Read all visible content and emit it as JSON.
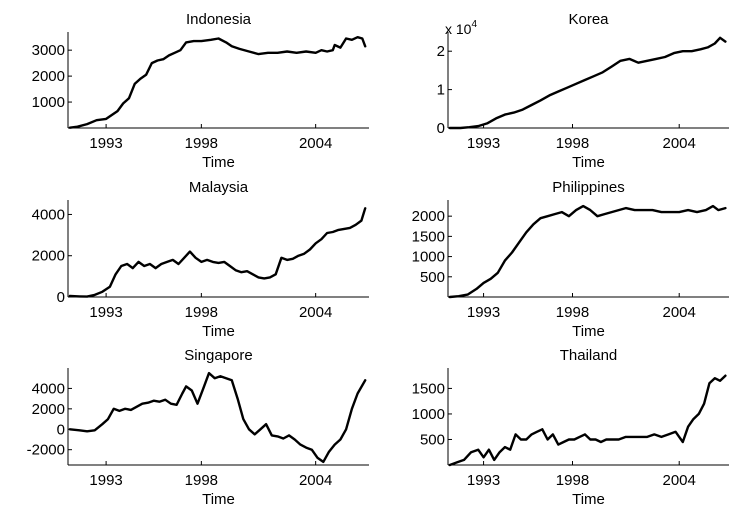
{
  "chart_data": [
    {
      "type": "line",
      "title": "Indonesia",
      "xlabel": "Time",
      "ylabel": "",
      "xlim": [
        1991.0,
        2006.8
      ],
      "ylim": [
        0,
        3700
      ],
      "xticks": [
        1993,
        1998,
        2004
      ],
      "xtick_labels": [
        "1993",
        "1998",
        "2004"
      ],
      "yticks": [
        1000,
        2000,
        3000
      ],
      "ytick_labels": [
        "1000",
        "2000",
        "3000"
      ],
      "x": [
        1991.1,
        1991.5,
        1992.0,
        1992.5,
        1993.0,
        1993.3,
        1993.6,
        1993.9,
        1994.2,
        1994.5,
        1994.8,
        1995.1,
        1995.4,
        1995.7,
        1996.0,
        1996.3,
        1996.6,
        1996.9,
        1997.2,
        1997.6,
        1998.0,
        1998.5,
        1998.9,
        1999.3,
        1999.6,
        2000.0,
        2000.5,
        2001.0,
        2001.5,
        2002.0,
        2002.5,
        2003.0,
        2003.5,
        2004.0,
        2004.3,
        2004.6,
        2004.9,
        2005.0,
        2005.3,
        2005.6,
        2005.9,
        2006.2,
        2006.45,
        2006.6
      ],
      "series": [
        {
          "values": [
            10,
            50,
            150,
            300,
            350,
            500,
            650,
            950,
            1150,
            1700,
            1900,
            2050,
            2500,
            2600,
            2650,
            2800,
            2900,
            3000,
            3300,
            3350,
            3350,
            3400,
            3450,
            3300,
            3150,
            3050,
            2950,
            2850,
            2900,
            2900,
            2950,
            2900,
            2950,
            2900,
            3000,
            2950,
            3000,
            3200,
            3100,
            3450,
            3400,
            3500,
            3450,
            3150
          ]
        }
      ]
    },
    {
      "type": "line",
      "title": "Korea",
      "xlabel": "Time",
      "ylabel": "",
      "axis_multiplier": "x 10",
      "axis_multiplier_exponent": "4",
      "xlim": [
        1991.0,
        2006.8
      ],
      "ylim": [
        0,
        2.5
      ],
      "xticks": [
        1993,
        1998,
        2004
      ],
      "xtick_labels": [
        "1993",
        "1998",
        "2004"
      ],
      "yticks": [
        0,
        1,
        2
      ],
      "ytick_labels": [
        "0",
        "1",
        "2"
      ],
      "x": [
        1991.1,
        1991.7,
        1992.2,
        1992.7,
        1993.2,
        1993.7,
        1994.2,
        1994.7,
        1995.2,
        1995.7,
        1996.2,
        1996.7,
        1997.2,
        1997.7,
        1998.2,
        1998.7,
        1999.2,
        1999.7,
        2000.2,
        2000.7,
        2001.2,
        2001.7,
        2002.2,
        2002.7,
        2003.2,
        2003.7,
        2004.2,
        2004.7,
        2005.2,
        2005.6,
        2006.0,
        2006.3,
        2006.6
      ],
      "series": [
        {
          "values": [
            0.0,
            0.0,
            0.02,
            0.05,
            0.12,
            0.25,
            0.35,
            0.4,
            0.48,
            0.6,
            0.72,
            0.85,
            0.95,
            1.05,
            1.15,
            1.25,
            1.35,
            1.45,
            1.6,
            1.75,
            1.8,
            1.7,
            1.75,
            1.8,
            1.85,
            1.95,
            2.0,
            2.0,
            2.05,
            2.1,
            2.2,
            2.35,
            2.25
          ]
        }
      ]
    },
    {
      "type": "line",
      "title": "Malaysia",
      "xlabel": "Time",
      "ylabel": "",
      "xlim": [
        1991.0,
        2006.8
      ],
      "ylim": [
        0,
        4700
      ],
      "xticks": [
        1993,
        1998,
        2004
      ],
      "xtick_labels": [
        "1993",
        "1998",
        "2004"
      ],
      "yticks": [
        0,
        2000,
        4000
      ],
      "ytick_labels": [
        "0",
        "2000",
        "4000"
      ],
      "x": [
        1991.1,
        1991.6,
        1992.0,
        1992.4,
        1992.8,
        1993.2,
        1993.5,
        1993.8,
        1994.1,
        1994.4,
        1994.7,
        1995.0,
        1995.3,
        1995.6,
        1995.9,
        1996.2,
        1996.5,
        1996.8,
        1997.1,
        1997.4,
        1997.7,
        1998.0,
        1998.3,
        1998.6,
        1998.9,
        1999.2,
        1999.5,
        1999.8,
        2000.1,
        2000.4,
        2000.7,
        2001.0,
        2001.3,
        2001.6,
        2001.9,
        2002.2,
        2002.5,
        2002.8,
        2003.1,
        2003.4,
        2003.7,
        2004.0,
        2004.3,
        2004.6,
        2004.9,
        2005.2,
        2005.5,
        2005.8,
        2006.1,
        2006.4,
        2006.6
      ],
      "series": [
        {
          "values": [
            50,
            30,
            20,
            100,
            250,
            500,
            1100,
            1500,
            1600,
            1400,
            1700,
            1500,
            1600,
            1400,
            1600,
            1700,
            1800,
            1600,
            1900,
            2200,
            1900,
            1700,
            1800,
            1700,
            1650,
            1700,
            1500,
            1300,
            1200,
            1250,
            1100,
            950,
            900,
            950,
            1100,
            1900,
            1800,
            1850,
            2000,
            2100,
            2300,
            2600,
            2800,
            3100,
            3150,
            3250,
            3300,
            3350,
            3500,
            3700,
            4300
          ]
        }
      ]
    },
    {
      "type": "line",
      "title": "Philippines",
      "xlabel": "Time",
      "ylabel": "",
      "xlim": [
        1991.0,
        2006.8
      ],
      "ylim": [
        0,
        2400
      ],
      "xticks": [
        1993,
        1998,
        2004
      ],
      "xtick_labels": [
        "1993",
        "1998",
        "2004"
      ],
      "yticks": [
        500,
        1000,
        1500,
        2000
      ],
      "ytick_labels": [
        "500",
        "1000",
        "1500",
        "2000"
      ],
      "x": [
        1991.1,
        1991.6,
        1992.1,
        1992.6,
        1993.0,
        1993.4,
        1993.8,
        1994.2,
        1994.6,
        1995.0,
        1995.4,
        1995.8,
        1996.2,
        1996.6,
        1997.0,
        1997.4,
        1997.8,
        1998.2,
        1998.6,
        1999.0,
        1999.4,
        1999.8,
        2000.2,
        2000.6,
        2001.0,
        2001.5,
        2002.0,
        2002.5,
        2003.0,
        2003.5,
        2004.0,
        2004.5,
        2005.0,
        2005.5,
        2005.9,
        2006.2,
        2006.6
      ],
      "series": [
        {
          "values": [
            0,
            20,
            60,
            200,
            350,
            450,
            600,
            900,
            1100,
            1350,
            1600,
            1800,
            1950,
            2000,
            2050,
            2100,
            2000,
            2150,
            2250,
            2150,
            2000,
            2050,
            2100,
            2150,
            2200,
            2150,
            2150,
            2150,
            2100,
            2100,
            2100,
            2150,
            2100,
            2150,
            2250,
            2150,
            2200
          ]
        }
      ]
    },
    {
      "type": "line",
      "title": "Singapore",
      "xlabel": "Time",
      "ylabel": "",
      "xlim": [
        1991.0,
        2006.8
      ],
      "ylim": [
        -3500,
        6000
      ],
      "xticks": [
        1993,
        1998,
        2004
      ],
      "xtick_labels": [
        "1993",
        "1998",
        "2004"
      ],
      "yticks": [
        -2000,
        0,
        2000,
        4000
      ],
      "ytick_labels": [
        "-2000",
        "0",
        "2000",
        "4000"
      ],
      "x": [
        1991.1,
        1991.6,
        1992.0,
        1992.4,
        1992.8,
        1993.1,
        1993.4,
        1993.7,
        1994.0,
        1994.3,
        1994.6,
        1994.9,
        1995.2,
        1995.5,
        1995.8,
        1996.1,
        1996.4,
        1996.7,
        1997.0,
        1997.2,
        1997.5,
        1997.8,
        1998.1,
        1998.4,
        1998.7,
        1999.0,
        1999.3,
        1999.6,
        1999.9,
        2000.2,
        2000.5,
        2000.8,
        2001.1,
        2001.4,
        2001.7,
        2002.0,
        2002.3,
        2002.6,
        2002.9,
        2003.2,
        2003.5,
        2003.8,
        2004.1,
        2004.4,
        2004.7,
        2005.0,
        2005.3,
        2005.6,
        2005.9,
        2006.2,
        2006.6
      ],
      "series": [
        {
          "values": [
            0,
            -100,
            -200,
            -100,
            500,
            1000,
            2000,
            1800,
            2000,
            1900,
            2200,
            2500,
            2600,
            2800,
            2700,
            2900,
            2500,
            2400,
            3500,
            4200,
            3800,
            2500,
            4000,
            5500,
            5000,
            5200,
            5000,
            4800,
            3000,
            1000,
            0,
            -500,
            0,
            500,
            -600,
            -700,
            -900,
            -600,
            -1000,
            -1500,
            -1800,
            -2000,
            -2800,
            -3200,
            -2200,
            -1500,
            -1000,
            0,
            2000,
            3500,
            4800
          ]
        }
      ]
    },
    {
      "type": "line",
      "title": "Thailand",
      "xlabel": "Time",
      "ylabel": "",
      "xlim": [
        1991.0,
        2006.8
      ],
      "ylim": [
        0,
        1900
      ],
      "xticks": [
        1993,
        1998,
        2004
      ],
      "xtick_labels": [
        "1993",
        "1998",
        "2004"
      ],
      "yticks": [
        500,
        1000,
        1500
      ],
      "ytick_labels": [
        "500",
        "1000",
        "1500"
      ],
      "x": [
        1991.1,
        1991.5,
        1991.9,
        1992.3,
        1992.7,
        1993.0,
        1993.3,
        1993.6,
        1993.9,
        1994.2,
        1994.5,
        1994.8,
        1995.1,
        1995.4,
        1995.7,
        1996.0,
        1996.3,
        1996.6,
        1996.9,
        1997.2,
        1997.5,
        1997.8,
        1998.1,
        1998.4,
        1998.7,
        1999.0,
        1999.3,
        1999.6,
        1999.9,
        2000.2,
        2000.6,
        2001.0,
        2001.4,
        2001.8,
        2002.2,
        2002.6,
        2003.0,
        2003.4,
        2003.8,
        2004.0,
        2004.2,
        2004.5,
        2004.8,
        2005.1,
        2005.4,
        2005.7,
        2006.0,
        2006.3,
        2006.6
      ],
      "series": [
        {
          "values": [
            0,
            50,
            100,
            250,
            300,
            150,
            300,
            100,
            250,
            350,
            300,
            600,
            500,
            500,
            600,
            650,
            700,
            500,
            600,
            400,
            450,
            500,
            500,
            550,
            600,
            500,
            500,
            450,
            500,
            500,
            500,
            550,
            550,
            550,
            550,
            600,
            550,
            600,
            650,
            550,
            450,
            750,
            900,
            1000,
            1200,
            1600,
            1700,
            1650,
            1750
          ]
        }
      ]
    }
  ]
}
